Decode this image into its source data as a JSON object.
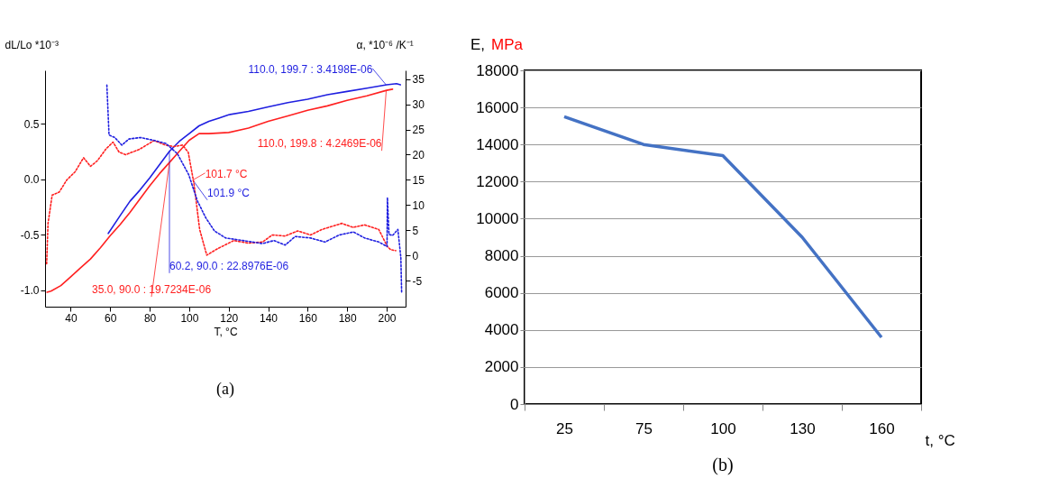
{
  "chart_data": [
    {
      "type": "line",
      "title": "(a)",
      "xlabel": "T, °C",
      "ylabel": "dL/Lo *10⁻³",
      "y2label": "α, *10⁻⁶ /K⁻¹",
      "xlim": [
        27,
        209.6
      ],
      "xticks": [
        40,
        60,
        80,
        100,
        120,
        140,
        160,
        180,
        200
      ],
      "ylim": [
        -1.15,
        0.98
      ],
      "yticks": [
        {
          "value": -1,
          "label": "-1.0"
        },
        {
          "value": -0.5,
          "label": "-0.5"
        },
        {
          "value": 0,
          "label": "0.0"
        },
        0.5
      ],
      "y2lim": [
        -10.1,
        36.7
      ],
      "y2ticks": [
        -5,
        0,
        5,
        10,
        15,
        20,
        25,
        30,
        35
      ],
      "grid": false,
      "series": [
        {
          "type": "line",
          "color": "#ff2020",
          "line_style": "solid",
          "axis": "y",
          "x": [
            28,
            30,
            35,
            40,
            45,
            50,
            55,
            60,
            65,
            70,
            75,
            80,
            85,
            90,
            95,
            100,
            105,
            110,
            120,
            130,
            140,
            150,
            160,
            170,
            180,
            190,
            200,
            203
          ],
          "values": [
            -1.02,
            -1.01,
            -0.96,
            -0.88,
            -0.8,
            -0.72,
            -0.62,
            -0.51,
            -0.41,
            -0.3,
            -0.18,
            -0.06,
            0.05,
            0.15,
            0.25,
            0.35,
            0.41,
            0.41,
            0.42,
            0.46,
            0.52,
            0.57,
            0.62,
            0.66,
            0.71,
            0.75,
            0.8,
            0.81
          ]
        },
        {
          "type": "line",
          "color": "#1f1fe0",
          "line_style": "solid",
          "axis": "y",
          "x": [
            59,
            65,
            70,
            75,
            80,
            85,
            90,
            95,
            100,
            105,
            110,
            115,
            120,
            130,
            140,
            150,
            160,
            170,
            180,
            190,
            200,
            205,
            207
          ],
          "values": [
            -0.49,
            -0.33,
            -0.2,
            -0.1,
            0.01,
            0.13,
            0.25,
            0.34,
            0.41,
            0.48,
            0.52,
            0.55,
            0.58,
            0.61,
            0.65,
            0.69,
            0.72,
            0.76,
            0.79,
            0.82,
            0.85,
            0.86,
            0.85
          ]
        },
        {
          "type": "line",
          "color": "#ff2020",
          "line_style": "dotted",
          "axis": "y2",
          "x": [
            27.8,
            28.5,
            30.6,
            34.2,
            38,
            42.2,
            46.5,
            50,
            53.5,
            57.8,
            61.4,
            64.5,
            67.9,
            75,
            82.2,
            88,
            92.3,
            96.6,
            99.5,
            102.4,
            105.3,
            108.9,
            114,
            122.6,
            129.8,
            137.1,
            142.1,
            148.6,
            155,
            161.5,
            167.3,
            177.3,
            183,
            188.8,
            196,
            200.4,
            202,
            204.6
          ],
          "values": [
            -1.6,
            6.4,
            12,
            12.6,
            15,
            16.6,
            19.4,
            17.7,
            18.8,
            21.1,
            22.5,
            20.5,
            20,
            21.1,
            22.8,
            21.9,
            21.6,
            21.9,
            20.5,
            14.3,
            5.2,
            0.1,
            1.3,
            3,
            2.5,
            2.7,
            4.1,
            3.9,
            4.9,
            4.1,
            5.2,
            6.4,
            5.6,
            6.1,
            5.2,
            1.8,
            1.2,
            1.0
          ]
        },
        {
          "type": "line",
          "color": "#1f1fe0",
          "line_style": "dotted",
          "axis": "y2",
          "x": [
            58.3,
            59.4,
            62.3,
            65.9,
            69.5,
            75.3,
            82.5,
            88.3,
            94,
            99.8,
            104.1,
            108.4,
            112.8,
            118.5,
            127.2,
            137.1,
            142.9,
            148.6,
            153.7,
            161.5,
            168.8,
            176,
            183.2,
            188.9,
            196.1,
            200.2,
            200.4,
            201.2,
            203,
            205.7,
            207.2,
            207.6
          ],
          "values": [
            33.8,
            23.9,
            23.4,
            21.9,
            23.1,
            23.4,
            22.8,
            22.2,
            20.2,
            16,
            10.9,
            7.5,
            4.9,
            3.5,
            3,
            2.4,
            3,
            2.1,
            3.8,
            3.5,
            2.7,
            4.1,
            4.7,
            3.5,
            2.7,
            1.8,
            11.5,
            4.2,
            4.0,
            5.2,
            -0.4,
            -7.2
          ]
        }
      ],
      "annotations": [
        {
          "text": "110.0, 199.7 : 3.4198E-06",
          "x": 199.7,
          "y": 0.85
        },
        {
          "text": "110.0, 199.8 : 4.2469E-06",
          "x": 199.8,
          "y": 0.8
        },
        {
          "text": "101.7 °C",
          "x": 101.7,
          "y": -0.01
        },
        {
          "text": "101.9 °C",
          "x": 101.9,
          "y": -0.01
        },
        {
          "text": "60.2, 90.0 : 22.8976E-06",
          "x": 90,
          "y": 0.25
        },
        {
          "text": "35.0, 90.0 : 19.7234E-06",
          "x": 90,
          "y": 0.15
        }
      ]
    },
    {
      "type": "line",
      "title": "(b)",
      "xlabel": "t, °C",
      "ylabel": "E, MPa",
      "categories": [
        "25",
        "75",
        "100",
        "130",
        "160"
      ],
      "values": [
        15500,
        14000,
        13400,
        9000,
        3600
      ],
      "color": "#4472c4",
      "ylim": [
        0,
        18000
      ],
      "yticks": [
        0,
        2000,
        4000,
        6000,
        8000,
        10000,
        12000,
        14000,
        16000,
        18000
      ],
      "grid": "y"
    }
  ]
}
